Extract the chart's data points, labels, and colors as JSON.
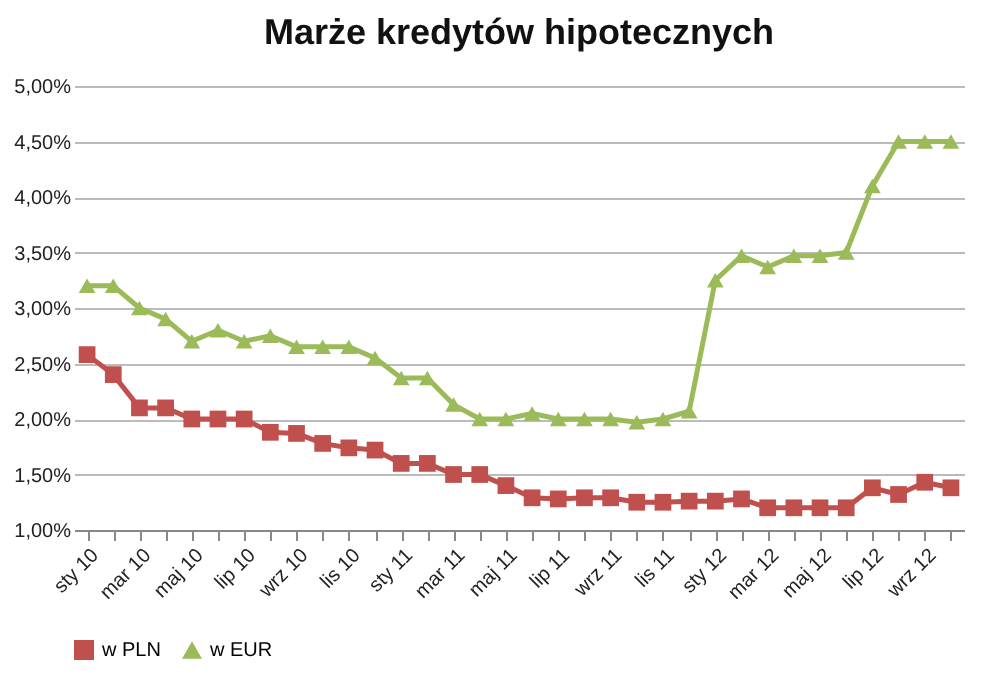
{
  "chart_data": {
    "type": "line",
    "title": "Marże kredytów hipotecznych",
    "categories": [
      "sty 10",
      null,
      "mar 10",
      null,
      "maj 10",
      null,
      "lip 10",
      null,
      "wrz 10",
      null,
      "lis 10",
      null,
      "sty 11",
      null,
      "mar 11",
      null,
      "maj 11",
      null,
      "lip 11",
      null,
      "wrz 11",
      null,
      "lis 11",
      null,
      "sty 12",
      null,
      "mar 12",
      null,
      "maj 12",
      null,
      "lip 12",
      null,
      "wrz 12",
      null
    ],
    "series": [
      {
        "name": "w PLN",
        "color": "#c0504d",
        "marker": "square",
        "values": [
          2.58,
          2.4,
          2.1,
          2.1,
          2.0,
          2.0,
          2.0,
          1.88,
          1.87,
          1.78,
          1.74,
          1.72,
          1.6,
          1.6,
          1.5,
          1.5,
          1.4,
          1.29,
          1.28,
          1.29,
          1.29,
          1.25,
          1.25,
          1.26,
          1.26,
          1.28,
          1.2,
          1.2,
          1.2,
          1.2,
          1.38,
          1.32,
          1.43,
          1.38
        ]
      },
      {
        "name": "w EUR",
        "color": "#9bbb59",
        "marker": "triangle",
        "values": [
          3.2,
          3.2,
          3.0,
          2.9,
          2.7,
          2.8,
          2.7,
          2.75,
          2.65,
          2.65,
          2.65,
          2.55,
          2.37,
          2.37,
          2.13,
          2.0,
          2.0,
          2.05,
          2.0,
          2.0,
          2.0,
          1.97,
          2.0,
          2.07,
          3.25,
          3.47,
          3.37,
          3.47,
          3.47,
          3.5,
          4.1,
          4.5,
          4.5,
          4.5
        ]
      }
    ],
    "ylim": [
      1,
      5
    ],
    "yticks": [
      {
        "value": 1,
        "label": "1,00%"
      },
      {
        "value": 1.5,
        "label": "1,50%"
      },
      {
        "value": 2,
        "label": "2,00%"
      },
      {
        "value": 2.5,
        "label": "2,50%"
      },
      {
        "value": 3,
        "label": "3,00%"
      },
      {
        "value": 3.5,
        "label": "3,50%"
      },
      {
        "value": 4,
        "label": "4,00%"
      },
      {
        "value": 4.5,
        "label": "4,50%"
      },
      {
        "value": 5,
        "label": "5,00%"
      }
    ],
    "grid": "y",
    "legend": "bottom",
    "line_style": "solid"
  }
}
